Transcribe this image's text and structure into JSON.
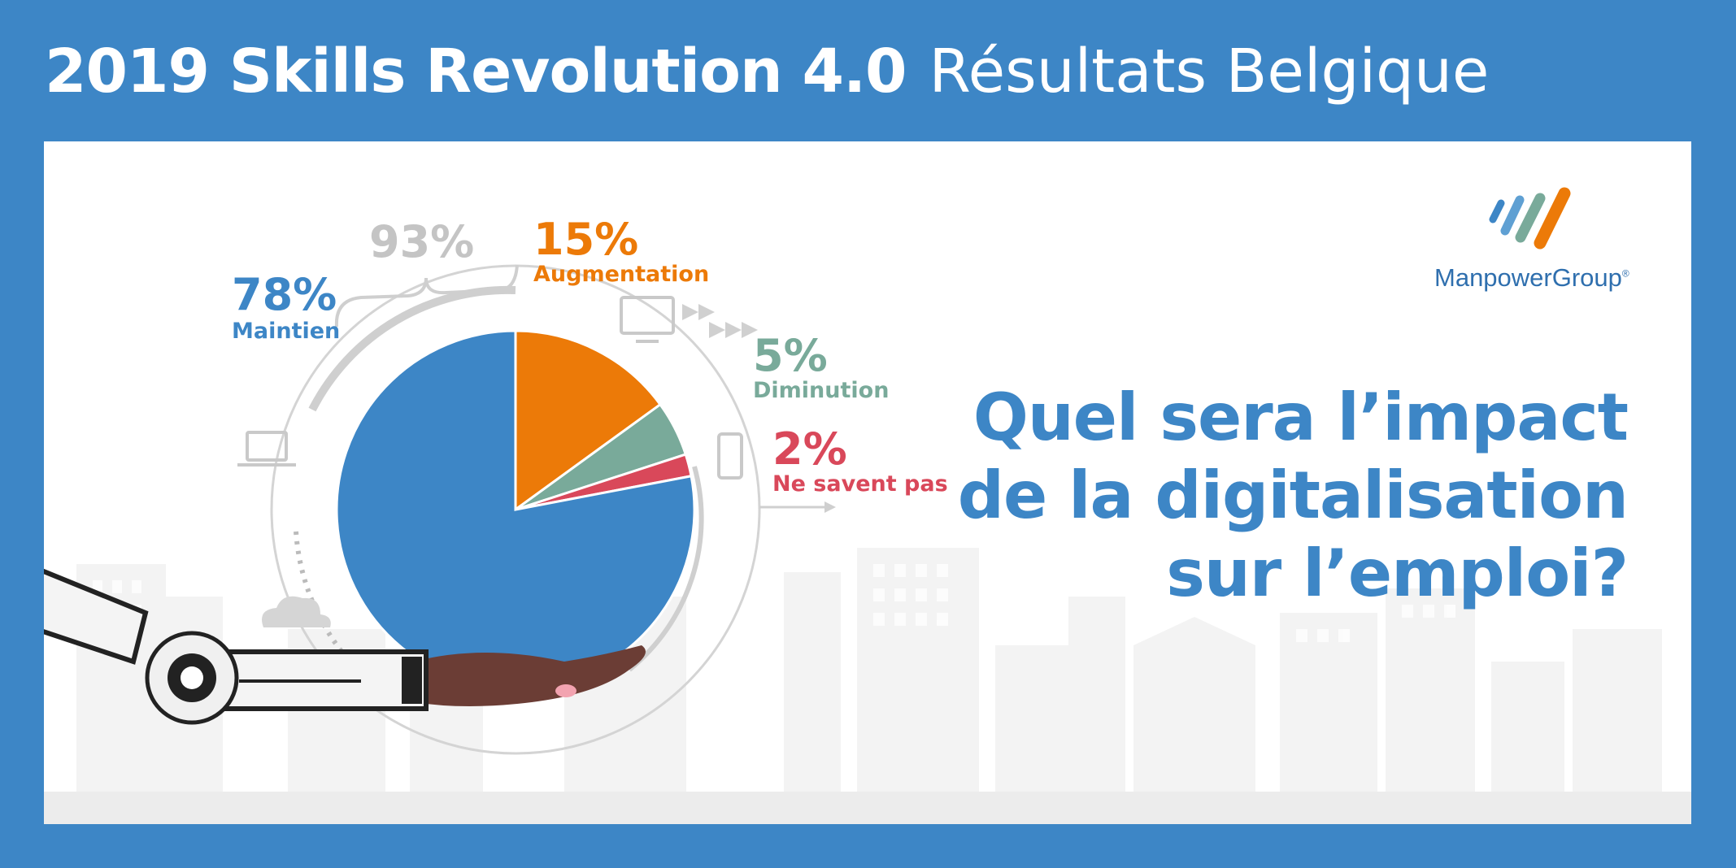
{
  "header": {
    "title_bold": "2019 Skills Revolution 4.0",
    "title_light": "Résultats Belgique"
  },
  "brand": {
    "name": "ManpowerGroup",
    "reg": "®"
  },
  "question": {
    "line1": "Quel sera l’impact",
    "line2": "de la digitalisation",
    "line3": "sur l’emploi?"
  },
  "bracket": {
    "label": "93%"
  },
  "colors": {
    "blue": "#3d86c6",
    "orange": "#ec7a08",
    "green": "#79aa9a",
    "red": "#d9485a",
    "grey": "#c8c8c8"
  },
  "chart_data": {
    "type": "pie",
    "title": "",
    "slices": [
      {
        "pct_label": "78%",
        "label": "Maintien",
        "value": 78,
        "color": "#3d86c6"
      },
      {
        "pct_label": "15%",
        "label": "Augmentation",
        "value": 15,
        "color": "#ec7a08"
      },
      {
        "pct_label": "5%",
        "label": "Diminution",
        "value": 5,
        "color": "#79aa9a"
      },
      {
        "pct_label": "2%",
        "label": "Ne savent pas",
        "value": 2,
        "color": "#d9485a"
      }
    ]
  }
}
